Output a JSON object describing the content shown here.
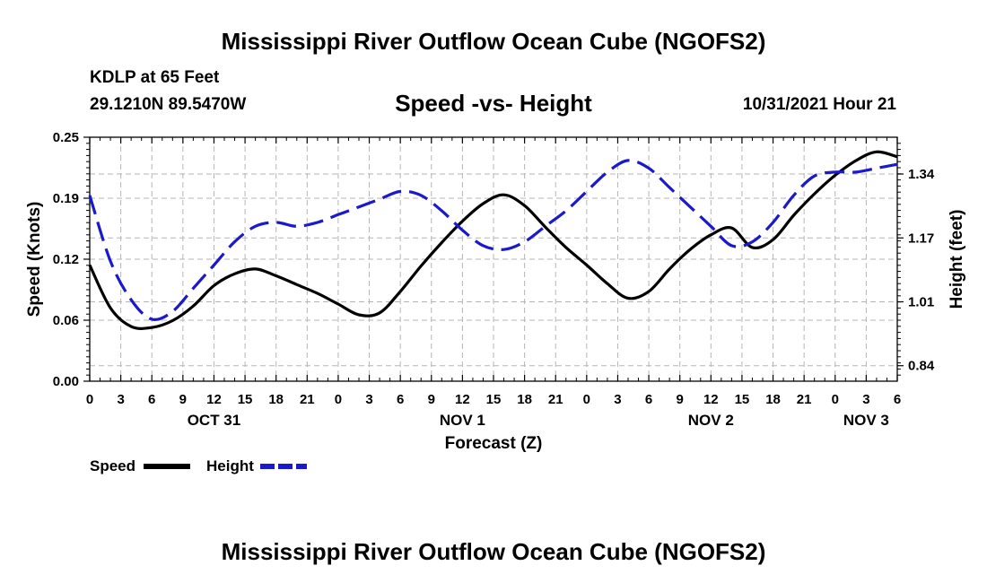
{
  "header": {
    "title": "Mississippi River Outflow Ocean Cube (NGOFS2)",
    "station": "KDLP at 65 Feet",
    "coords": "29.1210N  89.5470W",
    "subtitle": "Speed -vs- Height",
    "datetime": "10/31/2021 Hour 21"
  },
  "footer": {
    "title": "Mississippi River Outflow Ocean Cube (NGOFS2)"
  },
  "chart_data": {
    "type": "line",
    "title": "Speed -vs- Height",
    "xlabel": "Forecast (Z)",
    "ylabel": "Speed (Knots)",
    "y2label": "Height (feet)",
    "x_range": [
      0,
      78
    ],
    "x_tick_values": [
      0,
      3,
      6,
      9,
      12,
      15,
      18,
      21,
      24,
      27,
      30,
      33,
      36,
      39,
      42,
      45,
      48,
      51,
      54,
      57,
      60,
      63,
      66,
      69,
      72,
      75,
      78
    ],
    "x_tick_labels": [
      "0",
      "3",
      "6",
      "9",
      "12",
      "15",
      "18",
      "21",
      "0",
      "3",
      "6",
      "9",
      "12",
      "15",
      "18",
      "21",
      "0",
      "3",
      "6",
      "9",
      "12",
      "15",
      "18",
      "21",
      "0",
      "3",
      "6"
    ],
    "day_labels": [
      {
        "x": 12,
        "label": "OCT 31"
      },
      {
        "x": 36,
        "label": "NOV 1"
      },
      {
        "x": 60,
        "label": "NOV 2"
      },
      {
        "x": 75,
        "label": "NOV 3"
      }
    ],
    "ylim": [
      0,
      0.25
    ],
    "y_ticks": [
      "0.00",
      "0.06",
      "0.12",
      "0.19",
      "0.25"
    ],
    "y_tick_values": [
      0,
      0.0625,
      0.125,
      0.1875,
      0.25
    ],
    "y2lim": [
      0.8,
      1.43
    ],
    "y2_ticks": [
      "0.84",
      "1.01",
      "1.17",
      "1.34"
    ],
    "y2_tick_values": [
      0.84,
      1.005,
      1.17,
      1.335
    ],
    "series": [
      {
        "name": "Speed",
        "axis": "left",
        "color": "#000000",
        "dash": "solid",
        "x": [
          0,
          2,
          4,
          6,
          8,
          10,
          12,
          14,
          16,
          18,
          20,
          22,
          24,
          26,
          28,
          30,
          32,
          34,
          36,
          38,
          40,
          42,
          44,
          46,
          48,
          50,
          52,
          54,
          56,
          58,
          60,
          62,
          64,
          66,
          68,
          70,
          72,
          74,
          76,
          78
        ],
        "values": [
          0.119,
          0.075,
          0.056,
          0.055,
          0.062,
          0.077,
          0.098,
          0.11,
          0.115,
          0.108,
          0.099,
          0.09,
          0.079,
          0.068,
          0.07,
          0.092,
          0.118,
          0.142,
          0.164,
          0.182,
          0.191,
          0.18,
          0.158,
          0.137,
          0.119,
          0.1,
          0.085,
          0.092,
          0.115,
          0.135,
          0.15,
          0.157,
          0.137,
          0.145,
          0.17,
          0.192,
          0.211,
          0.226,
          0.235,
          0.23
        ]
      },
      {
        "name": "Height",
        "axis": "right",
        "color": "#1a1acc",
        "dash": "dashed",
        "x": [
          0,
          2,
          4,
          6,
          8,
          10,
          12,
          14,
          16,
          18,
          20,
          22,
          24,
          26,
          28,
          30,
          32,
          34,
          36,
          38,
          40,
          42,
          44,
          46,
          48,
          50,
          52,
          54,
          56,
          58,
          60,
          62,
          64,
          66,
          68,
          70,
          72,
          74,
          76,
          78
        ],
        "values": [
          1.28,
          1.11,
          1.01,
          0.96,
          0.98,
          1.04,
          1.1,
          1.16,
          1.2,
          1.21,
          1.2,
          1.21,
          1.23,
          1.25,
          1.27,
          1.29,
          1.28,
          1.24,
          1.19,
          1.15,
          1.14,
          1.16,
          1.2,
          1.24,
          1.29,
          1.34,
          1.37,
          1.35,
          1.3,
          1.25,
          1.2,
          1.15,
          1.16,
          1.21,
          1.28,
          1.33,
          1.34,
          1.34,
          1.35,
          1.36
        ]
      }
    ],
    "legend": [
      {
        "label": "Speed",
        "color": "#000000",
        "dash": "solid"
      },
      {
        "label": "Height",
        "color": "#1a1acc",
        "dash": "dashed"
      }
    ],
    "grid": true
  }
}
